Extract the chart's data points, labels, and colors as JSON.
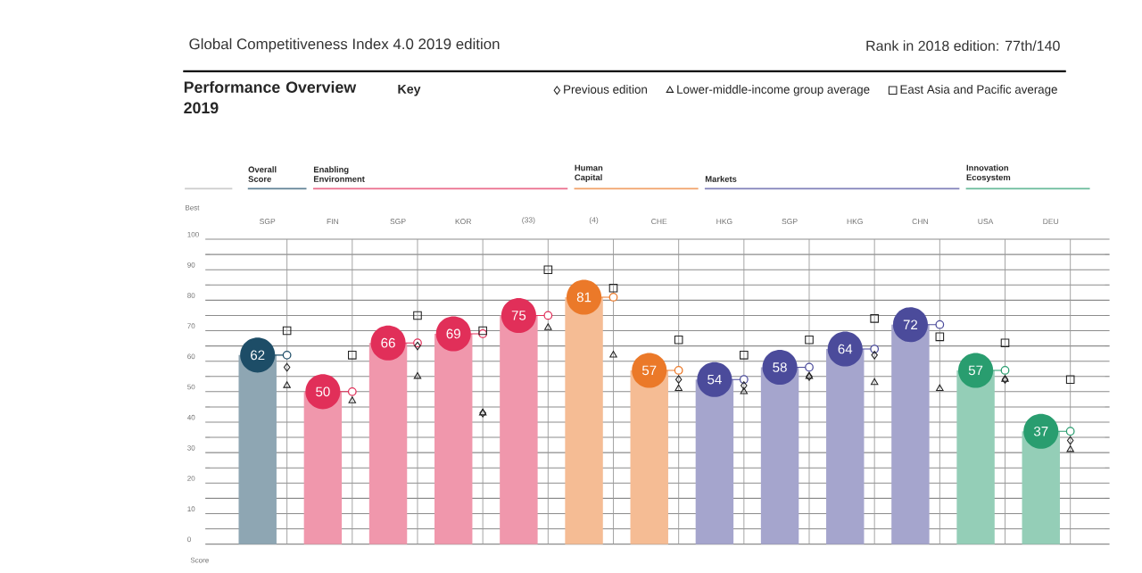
{
  "chart_data": {
    "type": "bar",
    "title": "Global Competitiveness Index 4.0 2019 edition",
    "subtitle": "Performance Overview 2019",
    "legend_title": "Key",
    "ylabel": "Score",
    "annotations": [
      "Rank in 2018 edition: 77th/140",
      "Best",
      "Overall Score",
      "Enabling Environment",
      "Human Capital",
      "Markets",
      "Innovation Ecosystem"
    ],
    "categories": [
      "SGP",
      "FIN",
      "SGP",
      "KOR",
      "(33)",
      "(4)",
      "CHE",
      "HKG",
      "SGP",
      "HKG",
      "CHN",
      "USA",
      "DEU"
    ],
    "values": [
      62,
      50,
      66,
      69,
      75,
      81,
      57,
      54,
      58,
      64,
      72,
      57,
      37
    ],
    "colors": [
      "#8ea6b3",
      "#f097ac",
      "#f097ac",
      "#f097ac",
      "#f097ac",
      "#f5bc94",
      "#f5bc94",
      "#a5a5cd",
      "#a5a5cd",
      "#a5a5cd",
      "#a5a5cd",
      "#94ceb7",
      "#94ceb7"
    ],
    "value_labels": [
      "62",
      "50",
      "66",
      "69",
      "75",
      "81",
      "57",
      "54",
      "58",
      "64",
      "72",
      "57",
      "37"
    ],
    "series": [
      {
        "name": "Previous edition",
        "type": "scatter",
        "marker": "diamond",
        "color": "#222222",
        "values": [
          58,
          null,
          65,
          43,
          null,
          null,
          54,
          52,
          55,
          62,
          null,
          54,
          34
        ]
      },
      {
        "name": "Lower-middle-income group average",
        "type": "scatter",
        "marker": "triangle",
        "color": "#222222",
        "values": [
          52,
          47,
          55,
          43,
          71,
          62,
          51,
          50,
          55,
          53,
          51,
          54,
          31
        ]
      },
      {
        "name": "East Asia and Pacific average",
        "type": "scatter",
        "marker": "square",
        "color": "#222222",
        "values": [
          70,
          62,
          75,
          70,
          90,
          84,
          67,
          62,
          67,
          74,
          68,
          66,
          54
        ]
      }
    ],
    "ylim": [
      0,
      100
    ],
    "yticks": [
      0,
      10,
      20,
      30,
      40,
      50,
      60,
      70,
      80,
      90,
      100
    ],
    "grid": "y",
    "legend": "top right"
  }
}
